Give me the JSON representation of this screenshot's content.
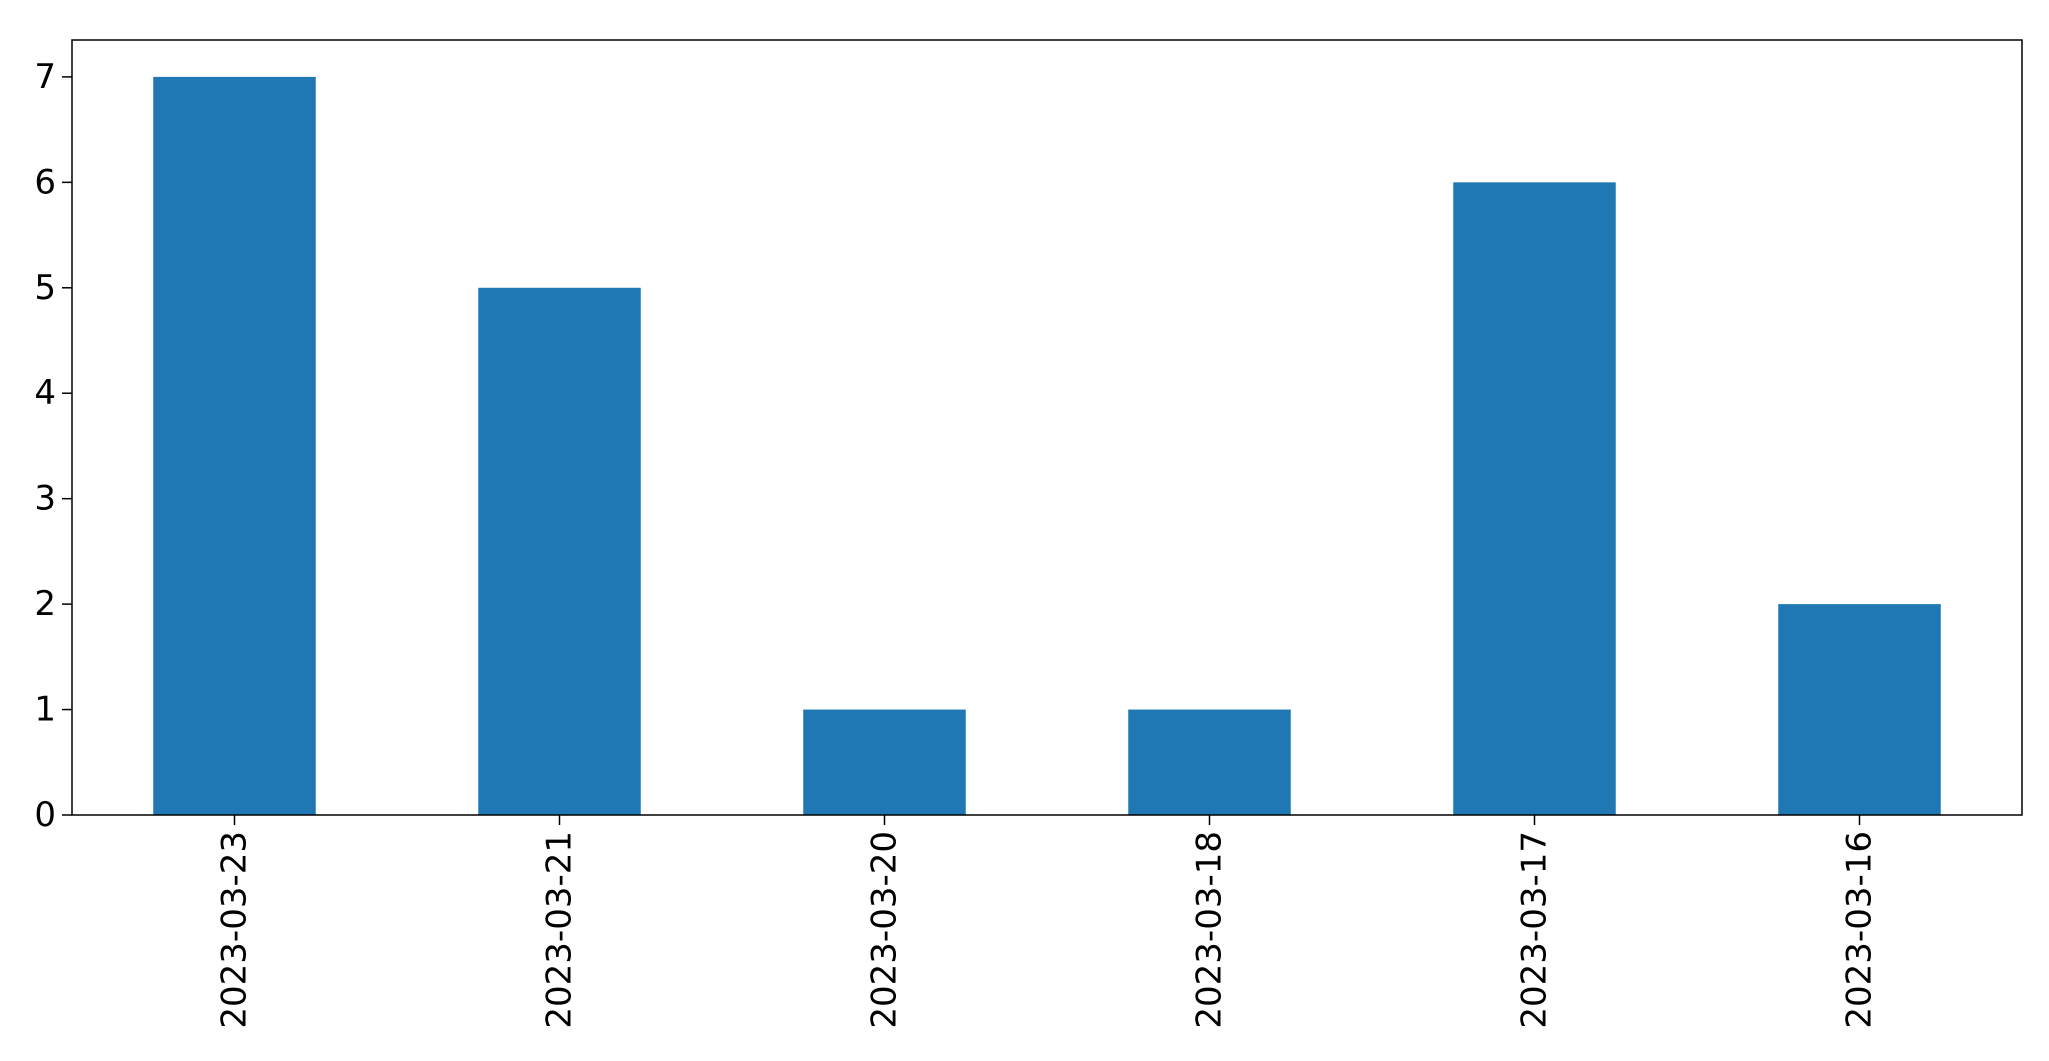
{
  "chart_data": {
    "type": "bar",
    "title": "",
    "xlabel": "",
    "ylabel": "",
    "categories": [
      "2023-03-23",
      "2023-03-21",
      "2023-03-20",
      "2023-03-18",
      "2023-03-17",
      "2023-03-16"
    ],
    "values": [
      7,
      5,
      1,
      1,
      6,
      2
    ],
    "ylim": [
      0,
      7.35
    ],
    "yticks": [
      0,
      1,
      2,
      3,
      4,
      5,
      6,
      7
    ],
    "grid": false,
    "legend": "none",
    "bar_color": "#1f77b4",
    "x_tick_rotation": "vertical"
  }
}
